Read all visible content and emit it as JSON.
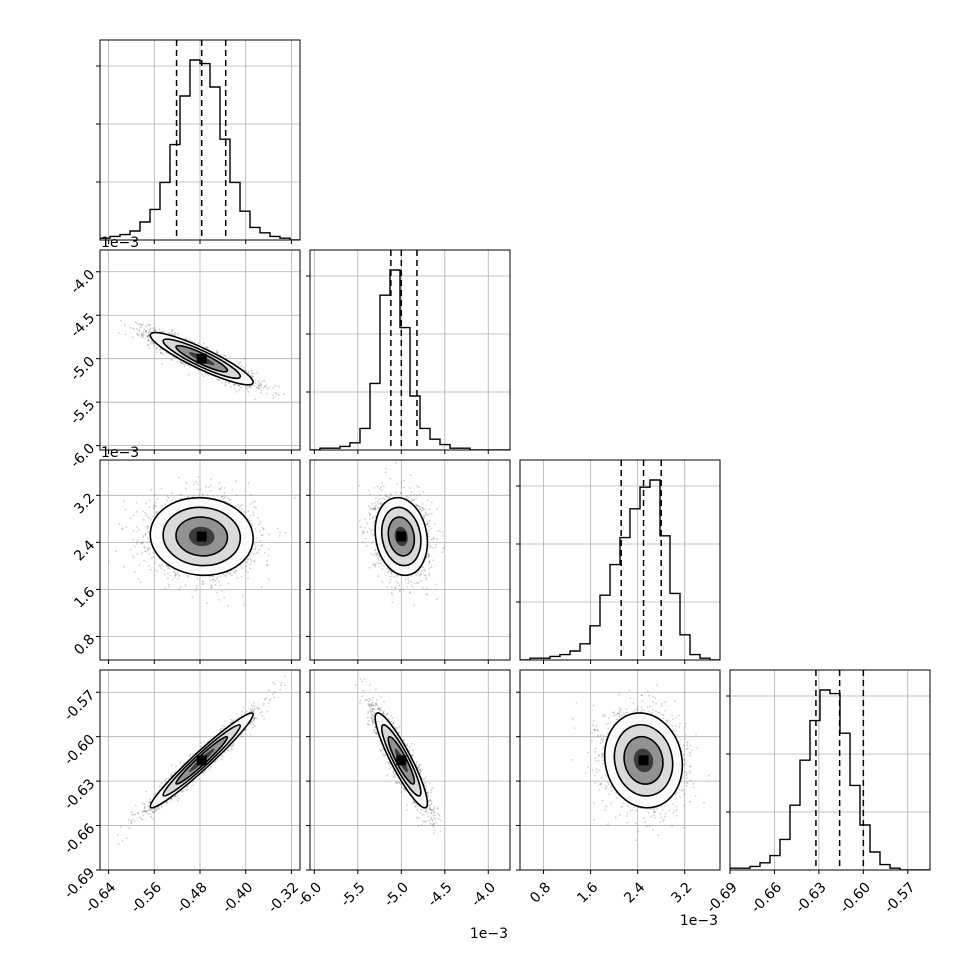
{
  "chart_data": {
    "type": "corner",
    "grid": true,
    "parameters": [
      {
        "range": [
          -0.655,
          -0.305
        ],
        "median": -0.477,
        "quantiles": [
          -0.521,
          -0.477,
          -0.435
        ],
        "sigma": 0.045,
        "ticks": [
          "-0.64",
          "-0.56",
          "-0.48",
          "-0.40",
          "-0.32"
        ],
        "tick_values": [
          -0.64,
          -0.56,
          -0.48,
          -0.4,
          -0.32
        ],
        "offset_label": ""
      },
      {
        "range": [
          -6.05,
          -3.75
        ],
        "median": -5.0,
        "quantiles": [
          -5.12,
          -5.0,
          -4.82
        ],
        "sigma": 0.15,
        "ticks": [
          "-6.0",
          "-5.5",
          "-5.0",
          "-4.5",
          "-4.0"
        ],
        "tick_values": [
          -6.0,
          -5.5,
          -5.0,
          -4.5,
          -4.0
        ],
        "offset_label": "1e−3"
      },
      {
        "range": [
          0.4,
          3.8
        ],
        "median": 2.5,
        "quantiles": [
          2.12,
          2.5,
          2.8
        ],
        "sigma": 0.33,
        "ticks": [
          "0.8",
          "1.6",
          "2.4",
          "3.2"
        ],
        "tick_values": [
          0.8,
          1.6,
          2.4,
          3.2
        ],
        "offset_label": "1e−3"
      },
      {
        "range": [
          -0.69,
          -0.555
        ],
        "median": -0.616,
        "quantiles": [
          -0.632,
          -0.616,
          -0.6
        ],
        "sigma": 0.016,
        "ticks": [
          "-0.69",
          "-0.66",
          "-0.63",
          "-0.60",
          "-0.57"
        ],
        "tick_values": [
          -0.69,
          -0.66,
          -0.63,
          -0.6,
          -0.57
        ],
        "offset_label": ""
      }
    ],
    "histograms": [
      [
        1,
        2,
        3,
        5,
        10,
        17,
        32,
        53,
        80,
        100,
        98,
        85,
        56,
        32,
        16,
        7,
        4,
        2,
        1,
        0
      ],
      [
        0,
        1,
        1,
        2,
        4,
        12,
        37,
        86,
        100,
        68,
        30,
        12,
        6,
        3,
        1,
        1,
        0,
        0,
        0,
        0
      ],
      [
        0,
        1,
        1,
        2,
        3,
        5,
        9,
        19,
        36,
        53,
        68,
        84,
        96,
        100,
        69,
        37,
        14,
        3,
        1,
        0
      ],
      [
        1,
        1,
        2,
        4,
        8,
        17,
        36,
        61,
        83,
        100,
        98,
        76,
        47,
        25,
        10,
        3,
        1,
        0,
        0,
        0
      ]
    ],
    "correlations": [
      {
        "row": 1,
        "col": 0,
        "rho": -0.9
      },
      {
        "row": 2,
        "col": 0,
        "rho": -0.05
      },
      {
        "row": 2,
        "col": 1,
        "rho": -0.15
      },
      {
        "row": 3,
        "col": 0,
        "rho": 0.97
      },
      {
        "row": 3,
        "col": 1,
        "rho": -0.9
      },
      {
        "row": 3,
        "col": 2,
        "rho": -0.1
      }
    ],
    "samples_per_panel": 2200,
    "xlabel": "",
    "ylabel": ""
  }
}
